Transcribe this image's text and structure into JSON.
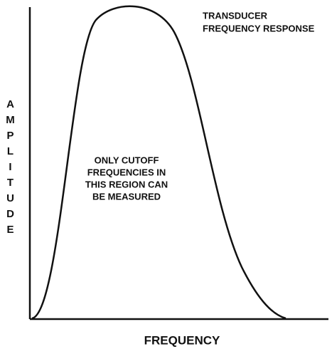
{
  "title": {
    "lines": [
      "TRANSDUCER",
      "FREQUENCY RESPONSE"
    ]
  },
  "y_axis_label": "AMPLITUDE",
  "x_axis_label": "FREQUENCY",
  "annotation": {
    "lines": [
      "ONLY CUTOFF",
      "FREQUENCIES IN",
      "THIS REGION CAN",
      "BE MEASURED"
    ]
  }
}
